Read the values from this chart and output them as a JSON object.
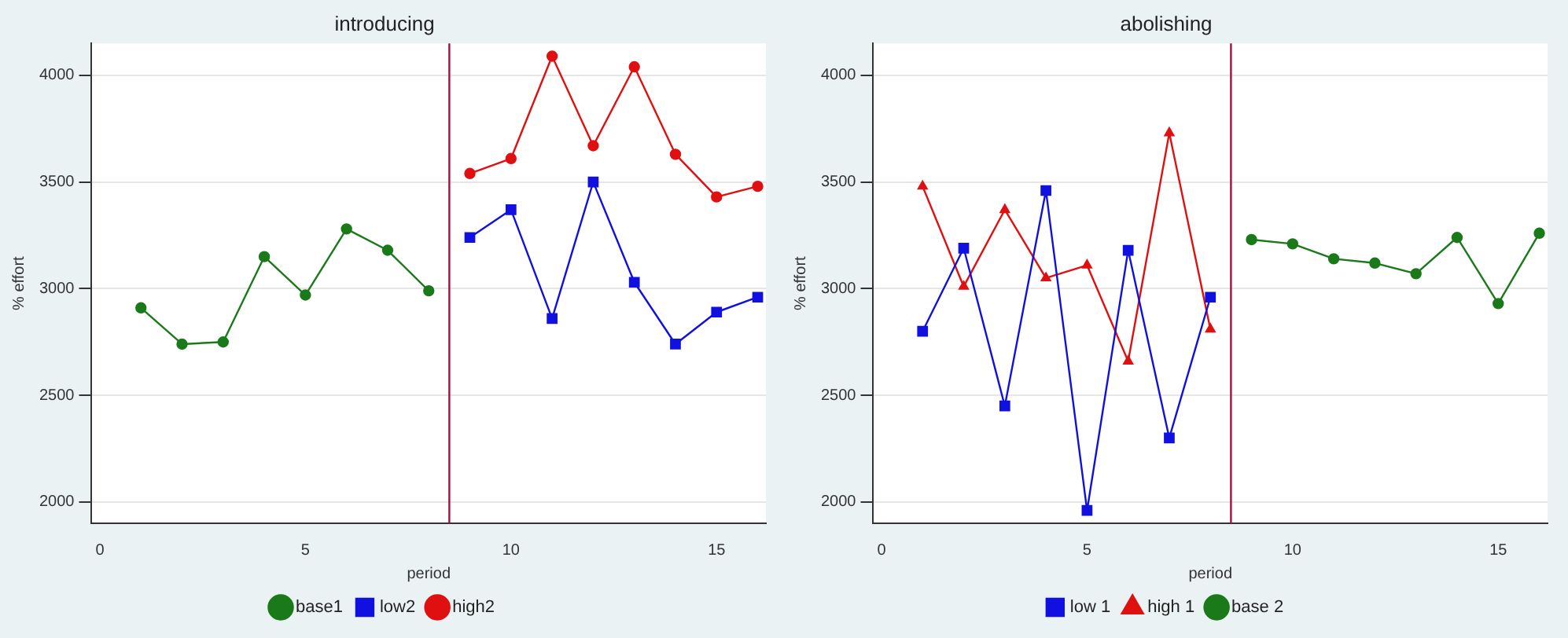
{
  "chart_data": [
    {
      "type": "line",
      "title": "introducing",
      "xlabel": "period",
      "ylabel": "% effort",
      "xlim": [
        -0.2,
        16.2
      ],
      "xticks": [
        0,
        5,
        10,
        15
      ],
      "ylim": [
        1900,
        4150
      ],
      "yticks": [
        2000,
        2500,
        3000,
        3500,
        4000
      ],
      "grid": "y",
      "legend": "bottom",
      "series": [
        {
          "name": "base1",
          "color": "#1a7a1a",
          "marker": "circle",
          "x": [
            1,
            2,
            3,
            4,
            5,
            6,
            7,
            8
          ],
          "values": [
            2910,
            2740,
            2750,
            3150,
            2970,
            3280,
            3180,
            2990
          ]
        },
        {
          "name": "low2",
          "color": "#1010e0",
          "marker": "square",
          "x": [
            9,
            10,
            11,
            12,
            13,
            14,
            15,
            16
          ],
          "values": [
            3240,
            3370,
            2860,
            3500,
            3030,
            2740,
            2890,
            2960
          ]
        },
        {
          "name": "high2",
          "color": "#e01010",
          "marker": "circle",
          "x": [
            9,
            10,
            11,
            12,
            13,
            14,
            15,
            16
          ],
          "values": [
            3540,
            3610,
            4090,
            3670,
            4040,
            3630,
            3430,
            3480
          ]
        }
      ],
      "ref_lines": [
        {
          "axis": "x",
          "value": 8.5,
          "color": "#a01040"
        }
      ]
    },
    {
      "type": "line",
      "title": "abolishing",
      "xlabel": "period",
      "ylabel": "% effort",
      "xlim": [
        -0.2,
        16.2
      ],
      "xticks": [
        0,
        5,
        10,
        15
      ],
      "ylim": [
        1900,
        4150
      ],
      "yticks": [
        2000,
        2500,
        3000,
        3500,
        4000
      ],
      "grid": "y",
      "legend": "bottom",
      "series": [
        {
          "name": "low 1",
          "color": "#1010e0",
          "marker": "square",
          "x": [
            1,
            2,
            3,
            4,
            5,
            6,
            7,
            8
          ],
          "values": [
            2800,
            3190,
            2450,
            3460,
            1960,
            3180,
            2300,
            2960
          ]
        },
        {
          "name": "high 1",
          "color": "#e01010",
          "marker": "triangle",
          "x": [
            1,
            2,
            3,
            4,
            5,
            6,
            7,
            8
          ],
          "values": [
            3480,
            3010,
            3370,
            3050,
            3110,
            2660,
            3730,
            2810
          ]
        },
        {
          "name": "base 2",
          "color": "#1a7a1a",
          "marker": "circle",
          "x": [
            9,
            10,
            11,
            12,
            13,
            14,
            15,
            16
          ],
          "values": [
            3230,
            3210,
            3140,
            3120,
            3070,
            3240,
            2930,
            3260
          ]
        }
      ],
      "ref_lines": [
        {
          "axis": "x",
          "value": 8.5,
          "color": "#a01040"
        }
      ]
    }
  ]
}
